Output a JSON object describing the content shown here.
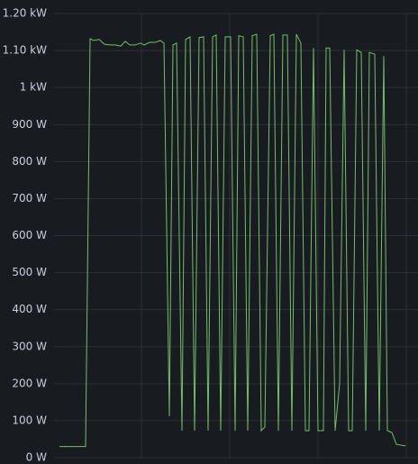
{
  "chart_data": {
    "type": "line",
    "x": [
      6,
      35,
      40,
      44,
      50,
      56,
      62,
      68,
      74,
      79,
      84,
      90,
      96,
      100,
      106,
      112,
      118,
      122,
      128,
      132,
      136,
      142,
      146,
      151,
      156,
      161,
      166,
      171,
      176,
      180,
      185,
      190,
      196,
      201,
      205,
      210,
      215,
      220,
      225,
      230,
      234,
      240,
      244,
      249,
      254,
      259,
      264,
      269,
      274,
      279,
      283,
      288,
      293,
      299,
      302,
      306,
      312,
      317,
      322,
      327,
      331,
      336,
      341,
      346,
      350,
      356,
      361,
      366,
      370,
      375,
      380,
      390
    ],
    "series": [
      {
        "color": "#73bf69",
        "values": [
          30,
          30,
          1132,
          1127,
          1130,
          1117,
          1115,
          1115,
          1112,
          1125,
          1115,
          1115,
          1120,
          1115,
          1122,
          1122,
          1127,
          1120,
          112,
          1115,
          1120,
          73,
          1130,
          1137,
          73,
          1135,
          1137,
          73,
          1137,
          1142,
          73,
          1137,
          1137,
          73,
          1140,
          1137,
          73,
          1140,
          1144,
          73,
          83,
          1140,
          1144,
          73,
          1142,
          1142,
          73,
          1144,
          1120,
          73,
          73,
          1107,
          73,
          73,
          1107,
          1107,
          73,
          200,
          1102,
          73,
          73,
          1102,
          1095,
          73,
          1095,
          1090,
          73,
          1085,
          73,
          68,
          36,
          32
        ]
      }
    ],
    "xlim": [
      0,
      404
    ],
    "xticks": [
      97,
      195,
      293,
      391
    ],
    "ylim": [
      0,
      1200
    ],
    "yticks": [
      {
        "value": 0,
        "label": "0 W"
      },
      {
        "value": 100,
        "label": "100 W"
      },
      {
        "value": 200,
        "label": "200 W"
      },
      {
        "value": 300,
        "label": "300 W"
      },
      {
        "value": 400,
        "label": "400 W"
      },
      {
        "value": 500,
        "label": "500 W"
      },
      {
        "value": 600,
        "label": "600 W"
      },
      {
        "value": 700,
        "label": "700 W"
      },
      {
        "value": 800,
        "label": "800 W"
      },
      {
        "value": 900,
        "label": "900 W"
      },
      {
        "value": 1000,
        "label": "1 kW"
      },
      {
        "value": 1100,
        "label": "1.10 kW"
      },
      {
        "value": 1200,
        "label": "1.20 kW"
      }
    ],
    "grid": true
  }
}
